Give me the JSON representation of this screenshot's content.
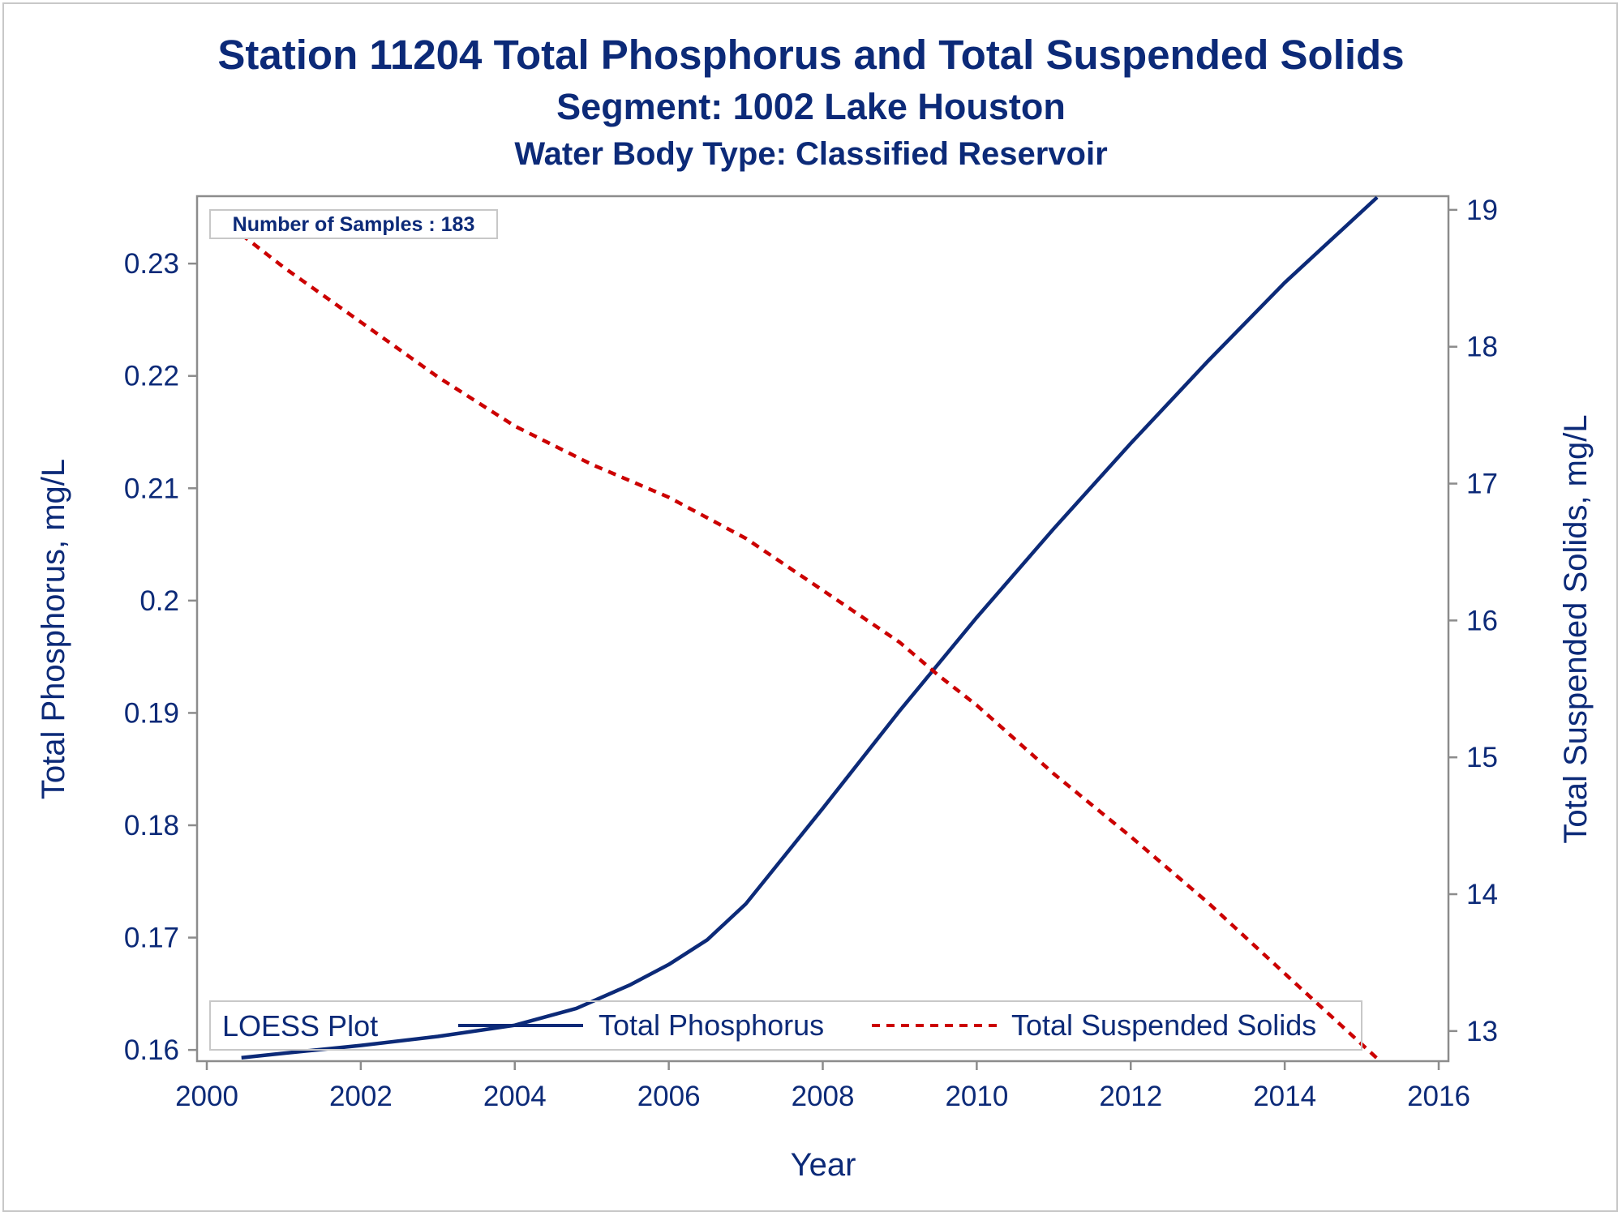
{
  "titles": {
    "line1": "Station 11204  Total Phosphorus and Total Suspended Solids",
    "line2": "Segment: 1002  Lake Houston",
    "line3": "Water Body Type: Classified Reservoir"
  },
  "annotation": "Number of Samples : 183",
  "legend": {
    "title": "LOESS Plot",
    "items": [
      "Total Phosphorus",
      "Total Suspended Solids"
    ]
  },
  "colors": {
    "phosphorus": "#0c2a78",
    "tss": "#cc0000",
    "text": "#0c2a78",
    "axis": "#8c8c8c"
  },
  "chart_data": {
    "type": "line",
    "xlabel": "Year",
    "ylabel": "Total Phosphorus, mg/L",
    "y2label": "Total Suspended Solids, mg/L",
    "xlim": [
      2000,
      2016
    ],
    "ylim": [
      0.159,
      0.236
    ],
    "y2lim": [
      12.78,
      19.1
    ],
    "x_ticks": [
      2000,
      2002,
      2004,
      2006,
      2008,
      2010,
      2012,
      2014,
      2016
    ],
    "y_ticks": [
      0.16,
      0.17,
      0.18,
      0.19,
      0.2,
      0.21,
      0.22,
      0.23
    ],
    "y2_ticks": [
      13,
      14,
      15,
      16,
      17,
      18,
      19
    ],
    "grid": false,
    "legend_position": "bottom-inside",
    "series": [
      {
        "name": "Total Phosphorus",
        "axis": "left",
        "style": "solid",
        "x": [
          2000.45,
          2001.0,
          2002.0,
          2003.0,
          2004.0,
          2004.8,
          2005.5,
          2006.0,
          2006.5,
          2007.0,
          2008.0,
          2009.0,
          2010.0,
          2011.0,
          2012.0,
          2013.0,
          2014.0,
          2015.2
        ],
        "y": [
          0.1593,
          0.1597,
          0.1604,
          0.1612,
          0.1622,
          0.1637,
          0.1658,
          0.1676,
          0.1698,
          0.173,
          0.1815,
          0.1902,
          0.1985,
          0.2064,
          0.214,
          0.2213,
          0.2283,
          0.2359
        ]
      },
      {
        "name": "Total Suspended Solids",
        "axis": "right",
        "style": "dashed",
        "x": [
          2000.45,
          2001.0,
          2002.0,
          2003.0,
          2004.0,
          2005.0,
          2006.0,
          2007.0,
          2008.0,
          2009.0,
          2009.5,
          2010.0,
          2011.0,
          2012.0,
          2013.0,
          2014.0,
          2015.2
        ],
        "y": [
          18.82,
          18.58,
          18.18,
          17.78,
          17.42,
          17.14,
          16.9,
          16.6,
          16.22,
          15.84,
          15.6,
          15.38,
          14.88,
          14.42,
          13.94,
          13.42,
          12.8
        ]
      }
    ]
  }
}
